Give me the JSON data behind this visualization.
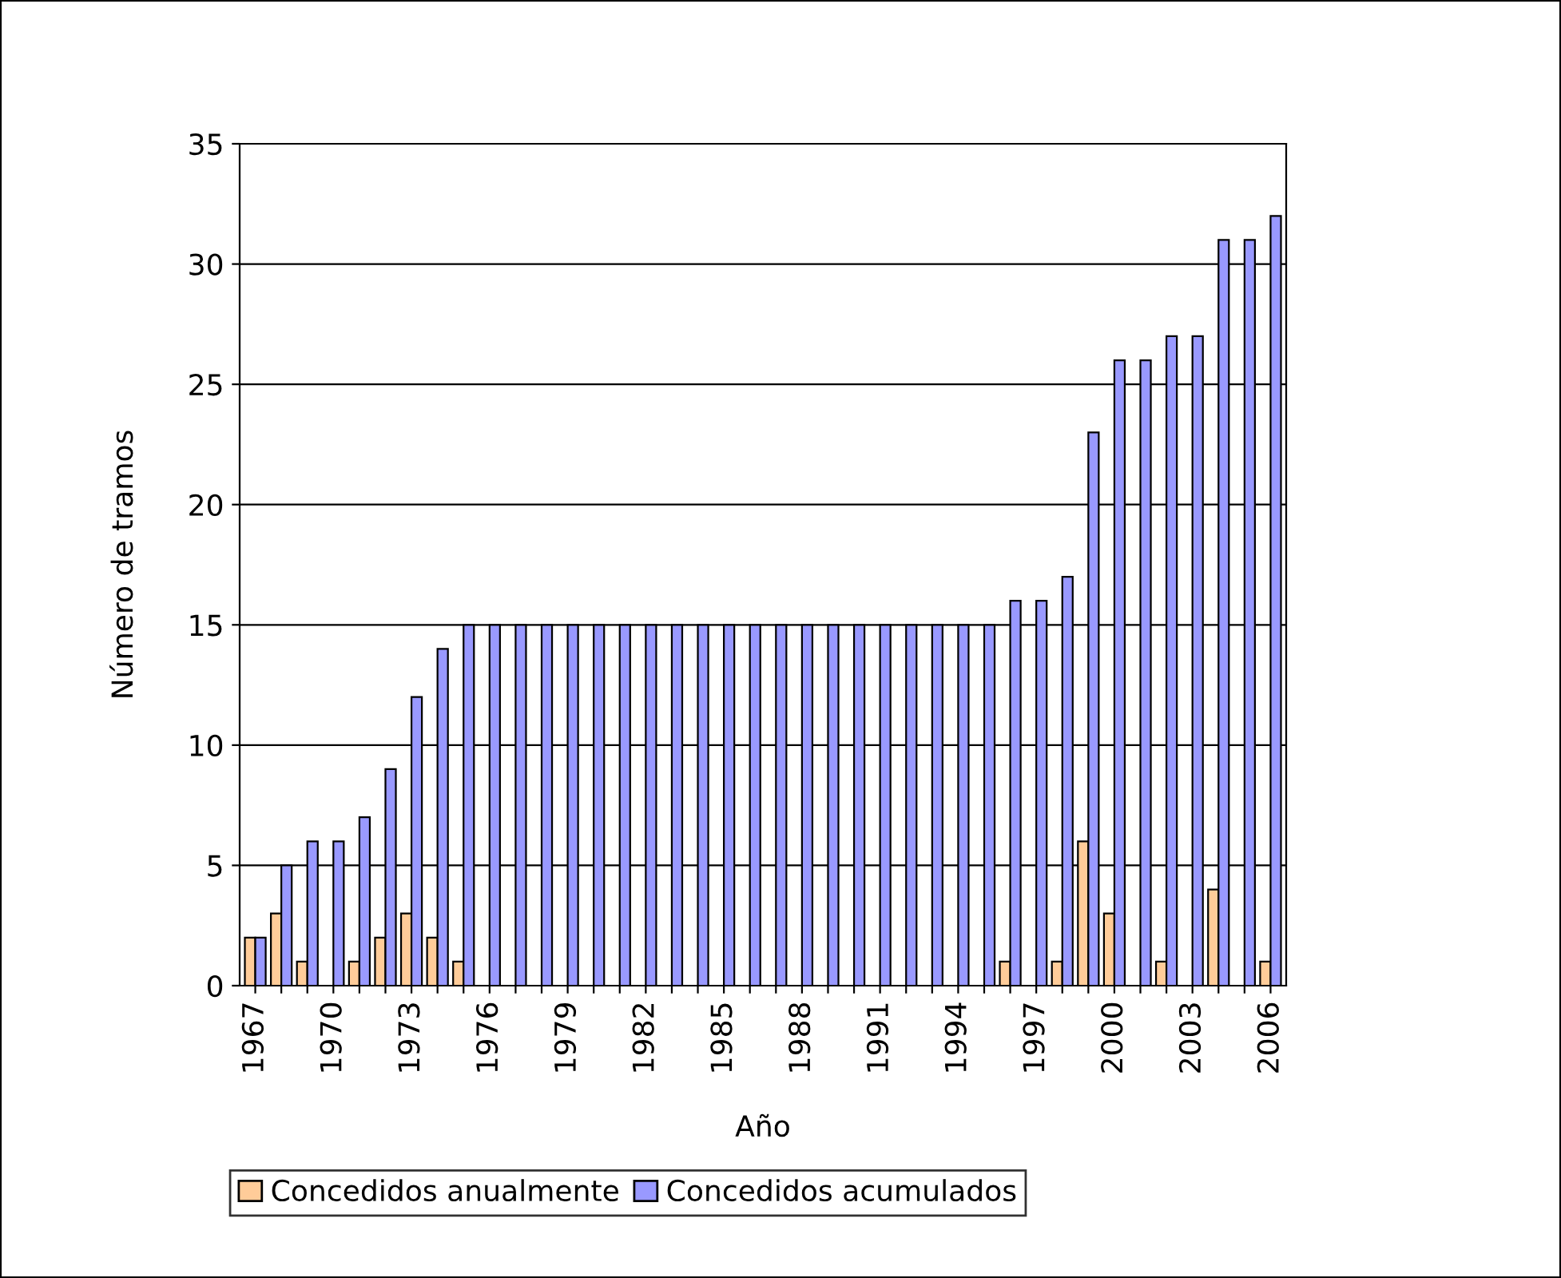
{
  "chart_data": {
    "type": "bar",
    "xlabel": "Año",
    "ylabel": "Número de tramos",
    "categories": [
      "1967",
      null,
      null,
      "1970",
      null,
      null,
      "1973",
      null,
      null,
      "1976",
      null,
      null,
      "1979",
      null,
      null,
      "1982",
      null,
      null,
      "1985",
      null,
      null,
      "1988",
      null,
      null,
      "1991",
      null,
      null,
      "1994",
      null,
      null,
      "1997",
      null,
      null,
      "2000",
      null,
      null,
      "2003",
      null,
      null,
      "2006"
    ],
    "series": [
      {
        "name": "Concedidos anualmente",
        "color": "#ffcc99",
        "values": [
          2,
          3,
          1,
          0,
          1,
          2,
          3,
          2,
          1,
          0,
          0,
          0,
          0,
          0,
          0,
          0,
          0,
          0,
          0,
          0,
          0,
          0,
          0,
          0,
          0,
          0,
          0,
          0,
          0,
          1,
          0,
          1,
          6,
          3,
          0,
          1,
          0,
          4,
          0,
          1
        ]
      },
      {
        "name": "Concedidos acumulados",
        "color": "#9999ff",
        "values": [
          2,
          5,
          6,
          6,
          7,
          9,
          12,
          14,
          15,
          15,
          15,
          15,
          15,
          15,
          15,
          15,
          15,
          15,
          15,
          15,
          15,
          15,
          15,
          15,
          15,
          15,
          15,
          15,
          15,
          16,
          16,
          17,
          23,
          26,
          26,
          27,
          27,
          31,
          31,
          32
        ]
      }
    ],
    "ylim": [
      0,
      35
    ],
    "yticks": [
      0,
      5,
      10,
      15,
      20,
      25,
      30,
      35
    ],
    "grid": "y",
    "legend": "bottom"
  }
}
